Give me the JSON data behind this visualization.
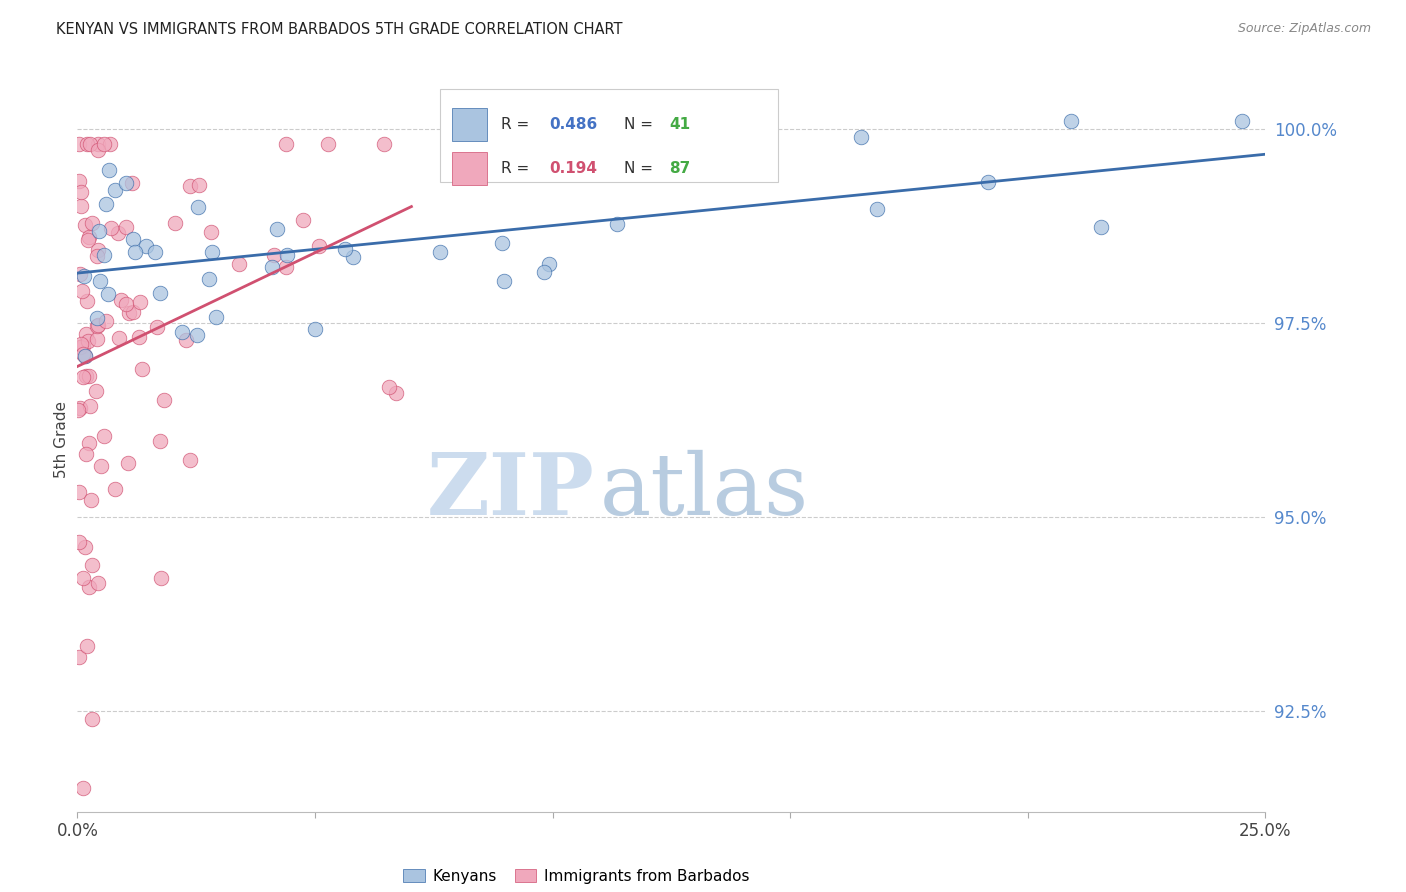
{
  "title": "KENYAN VS IMMIGRANTS FROM BARBADOS 5TH GRADE CORRELATION CHART",
  "source": "Source: ZipAtlas.com",
  "ylabel": "5th Grade",
  "y_ticks": [
    92.5,
    95.0,
    97.5,
    100.0
  ],
  "y_tick_labels": [
    "92.5%",
    "95.0%",
    "97.5%",
    "100.0%"
  ],
  "x_min": 0.0,
  "x_max": 25.0,
  "y_min": 91.2,
  "y_max": 100.8,
  "blue_R": 0.486,
  "blue_N": 41,
  "pink_R": 0.194,
  "pink_N": 87,
  "blue_color": "#aac4e0",
  "pink_color": "#f0a8bc",
  "blue_line_color": "#3a6caa",
  "pink_line_color": "#d05070",
  "legend_R_blue_color": "#4472c4",
  "legend_R_pink_color": "#d05070",
  "legend_N_color": "#44aa44",
  "watermark_zip_color": "#ccdcee",
  "watermark_atlas_color": "#b8cce0",
  "grid_color": "#cccccc",
  "right_axis_color": "#5588cc",
  "title_color": "#222222",
  "source_color": "#888888"
}
